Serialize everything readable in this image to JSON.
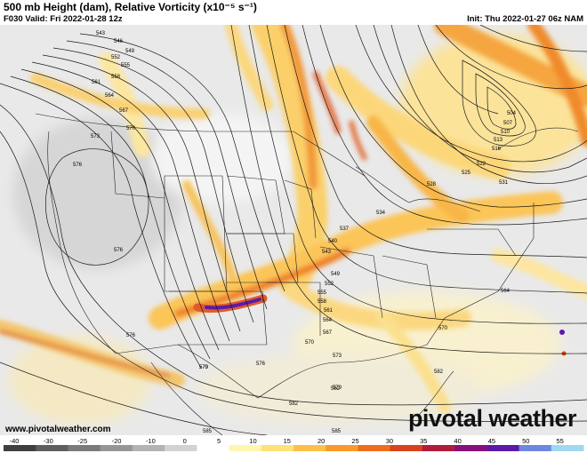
{
  "header": {
    "title": "500 mb Height (dam), Relative Vorticity (x10⁻⁵ s⁻¹)",
    "valid": "F030 Valid: Fri 2022-01-28 12z",
    "init": "Init: Thu 2022-01-27 06z NAM"
  },
  "footer": {
    "site": "www.pivotalweather.com",
    "brand": "pivotal weather"
  },
  "contour_labels": [
    "543",
    "546",
    "549",
    "552",
    "555",
    "558",
    "561",
    "564",
    "567",
    "570",
    "573",
    "576",
    "576",
    "576",
    "579",
    "579",
    "582",
    "582",
    "585",
    "585",
    "504",
    "507",
    "510",
    "513",
    "516",
    "522",
    "525",
    "528",
    "531",
    "534",
    "537",
    "540",
    "543",
    "549",
    "552",
    "555",
    "558",
    "561",
    "564",
    "567",
    "570",
    "573",
    "576",
    "579",
    "582",
    "564",
    "570"
  ],
  "colorbar": {
    "ticks": [
      "-40",
      "-30",
      "-25",
      "-20",
      "-10",
      "0",
      "5",
      "10",
      "15",
      "20",
      "25",
      "30",
      "35",
      "40",
      "45",
      "50",
      "55"
    ],
    "colors": [
      "#3f3f3f",
      "#5e5e5e",
      "#7a7a7a",
      "#969696",
      "#b3b3b3",
      "#d2d2d2",
      "#ffffff",
      "#fff6b0",
      "#fde27a",
      "#fcc04a",
      "#f99a2a",
      "#ef6e1e",
      "#d8421c",
      "#b01c3a",
      "#88107a",
      "#5b1aa8",
      "#6f86e0",
      "#9fd9f0"
    ]
  },
  "legend_colors": {
    "vort_low": "#fff2a8",
    "vort_mid": "#f8b23a",
    "vort_high": "#e0542a",
    "vort_max": "#5b1aa8",
    "neg": "#b8b8b8"
  }
}
